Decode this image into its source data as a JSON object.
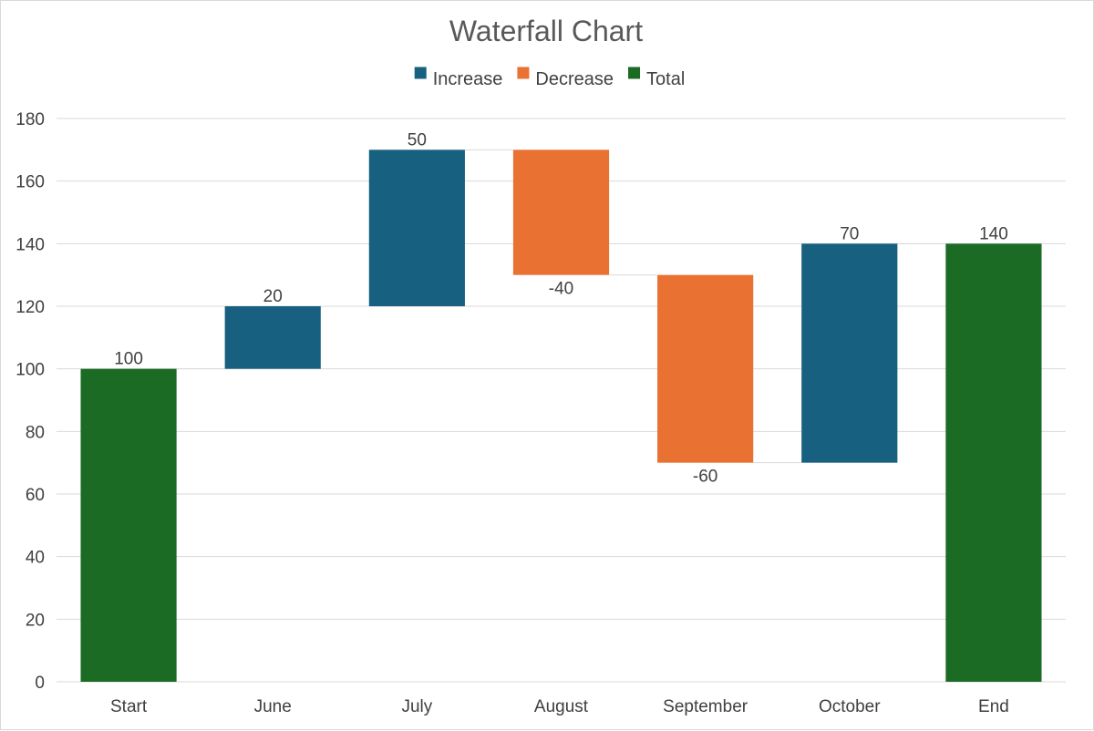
{
  "chart_data": {
    "type": "waterfall",
    "title": "Waterfall Chart",
    "categories": [
      "Start",
      "June",
      "July",
      "August",
      "September",
      "October",
      "End"
    ],
    "values": [
      100,
      20,
      50,
      -40,
      -60,
      70,
      140
    ],
    "kinds": [
      "total",
      "increase",
      "increase",
      "decrease",
      "decrease",
      "increase",
      "total"
    ],
    "legend": [
      {
        "key": "increase",
        "label": "Increase",
        "color": "#17607f"
      },
      {
        "key": "decrease",
        "label": "Decrease",
        "color": "#e97132"
      },
      {
        "key": "total",
        "label": "Total",
        "color": "#1b6b24"
      }
    ],
    "legend_position": "top",
    "ylim": [
      0,
      180
    ],
    "yticks": [
      0,
      20,
      40,
      60,
      80,
      100,
      120,
      140,
      160,
      180
    ],
    "grid": true,
    "xlabel": "",
    "ylabel": ""
  }
}
